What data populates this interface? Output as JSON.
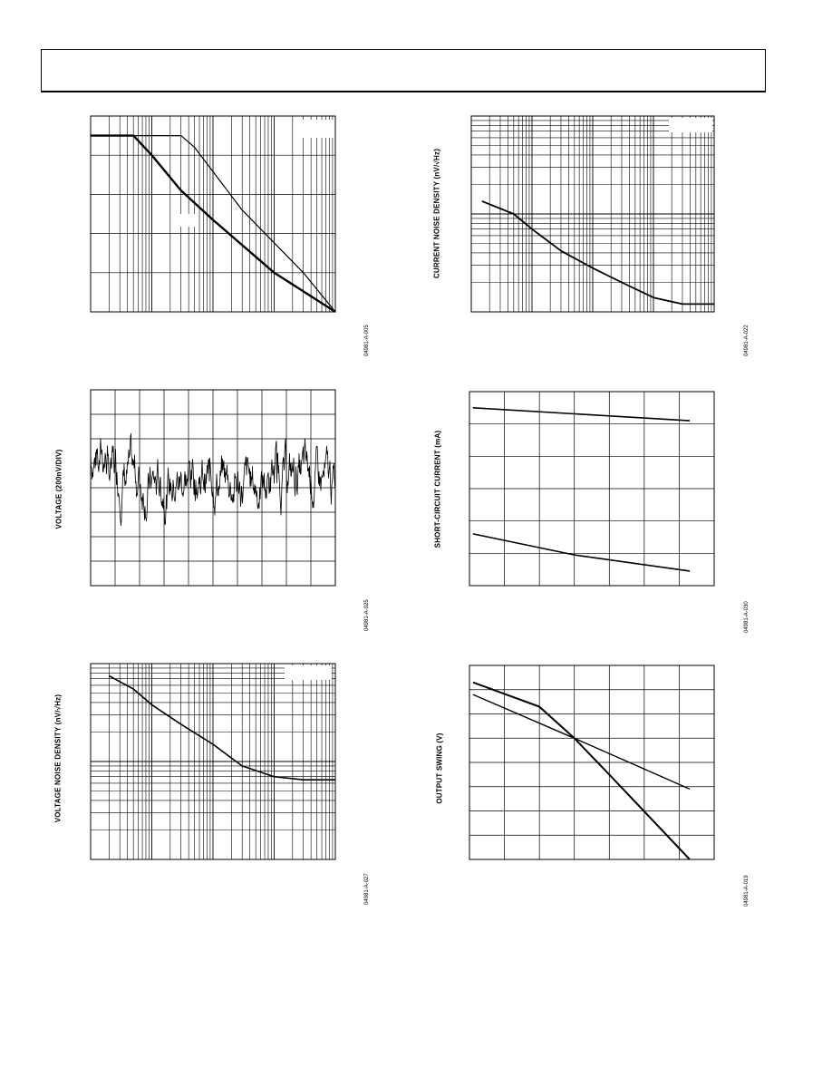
{
  "page": {
    "header": ""
  },
  "chart_data": [
    {
      "id": "c1",
      "type": "line",
      "code": "04981-A-005",
      "ylabel": "",
      "x_scale": "log",
      "xlim": [
        0.1,
        1000
      ],
      "ylim": [
        0,
        5
      ],
      "grid": true,
      "legend": "top-right",
      "series": [
        {
          "values": [
            [
              0.1,
              4.5
            ],
            [
              0.5,
              4.5
            ],
            [
              1,
              4.0
            ],
            [
              3,
              3.1
            ],
            [
              10,
              2.35
            ],
            [
              100,
              1.0
            ],
            [
              1000,
              0
            ]
          ]
        },
        {
          "values": [
            [
              0.1,
              4.5
            ],
            [
              3,
              4.5
            ],
            [
              5,
              4.2
            ],
            [
              30,
              2.6
            ],
            [
              300,
              1.0
            ],
            [
              1000,
              0
            ]
          ]
        }
      ]
    },
    {
      "id": "c2",
      "type": "line",
      "code": "04981-A-022",
      "ylabel": "CURRENT NOISE DENSITY (nV/√Hz)",
      "x_scale": "log",
      "xlim": [
        0.1,
        1000
      ],
      "y_scale": "log",
      "ylim": [
        0.1,
        10
      ],
      "grid": true,
      "legend": "top-right",
      "series": [
        {
          "values": [
            [
              0.15,
              1.35
            ],
            [
              0.5,
              1.0
            ],
            [
              1,
              0.7
            ],
            [
              3,
              0.42
            ],
            [
              10,
              0.28
            ],
            [
              30,
              0.2
            ],
            [
              100,
              0.14
            ],
            [
              300,
              0.12
            ],
            [
              1000,
              0.12
            ]
          ]
        }
      ]
    },
    {
      "id": "c3",
      "type": "line",
      "code": "04981-A-025",
      "ylabel": "VOLTAGE (200nV/DIV)",
      "xlim": [
        0,
        10
      ],
      "ylim": [
        -4,
        4
      ],
      "grid": true,
      "series": [
        {
          "generator": "noise",
          "seed": 7
        }
      ]
    },
    {
      "id": "c4",
      "type": "line",
      "code": "04981-A-030",
      "ylabel": "SHORT-CIRCUIT CURRENT (mA)",
      "xlim": [
        0,
        7
      ],
      "ylim": [
        0,
        6
      ],
      "grid": true,
      "series": [
        {
          "values": [
            [
              0.1,
              5.5
            ],
            [
              6.3,
              5.1
            ]
          ]
        },
        {
          "values": [
            [
              0.1,
              1.6
            ],
            [
              3,
              0.95
            ],
            [
              6.3,
              0.45
            ]
          ]
        }
      ]
    },
    {
      "id": "c5",
      "type": "line",
      "code": "04981-A-027",
      "ylabel": "VOLTAGE NOISE DENSITY (nV/√Hz)",
      "x_scale": "log",
      "xlim": [
        0.1,
        1000
      ],
      "y_scale": "log",
      "ylim": [
        10,
        1000
      ],
      "grid": true,
      "legend": "top-right",
      "series": [
        {
          "values": [
            [
              0.2,
              750
            ],
            [
              0.5,
              550
            ],
            [
              1,
              380
            ],
            [
              3,
              240
            ],
            [
              10,
              150
            ],
            [
              30,
              90
            ],
            [
              100,
              70
            ],
            [
              300,
              65
            ],
            [
              1000,
              65
            ]
          ]
        }
      ]
    },
    {
      "id": "c6",
      "type": "line",
      "code": "04981-A-019",
      "ylabel": "OUTPUT SWING (V)",
      "xlim": [
        0,
        7
      ],
      "ylim": [
        0,
        8
      ],
      "grid": true,
      "legend": "top-right",
      "series": [
        {
          "values": [
            [
              0.1,
              7.3
            ],
            [
              2,
              6.3
            ],
            [
              3,
              5.0
            ],
            [
              4,
              3.5
            ],
            [
              6.3,
              0.0
            ]
          ]
        },
        {
          "values": [
            [
              0.1,
              6.8
            ],
            [
              3,
              5.0
            ],
            [
              6.3,
              2.9
            ]
          ]
        }
      ]
    }
  ]
}
